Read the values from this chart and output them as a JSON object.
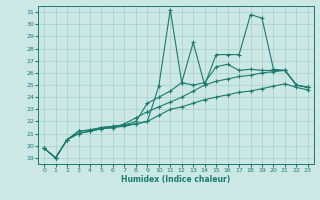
{
  "xlabel": "Humidex (Indice chaleur)",
  "background_color": "#cce8e5",
  "grid_color": "#a8ceca",
  "line_color": "#1a7a6e",
  "xlim": [
    -0.5,
    23.5
  ],
  "ylim": [
    18.5,
    31.5
  ],
  "xticks": [
    0,
    1,
    2,
    3,
    4,
    5,
    6,
    7,
    8,
    9,
    10,
    11,
    12,
    13,
    14,
    15,
    16,
    17,
    18,
    19,
    20,
    21,
    22,
    23
  ],
  "yticks": [
    19,
    20,
    21,
    22,
    23,
    24,
    25,
    26,
    27,
    28,
    29,
    30,
    31
  ],
  "series": [
    [
      19.8,
      19.0,
      20.5,
      21.2,
      21.3,
      21.5,
      21.6,
      21.7,
      21.8,
      22.0,
      24.9,
      31.2,
      25.2,
      28.5,
      25.0,
      27.5,
      27.5,
      27.5,
      30.8,
      30.5,
      26.3,
      26.2,
      25.0,
      24.8
    ],
    [
      19.8,
      19.0,
      20.5,
      21.2,
      21.3,
      21.5,
      21.6,
      21.7,
      22.0,
      23.5,
      24.0,
      24.5,
      25.2,
      25.0,
      25.2,
      26.5,
      26.7,
      26.2,
      26.3,
      26.2,
      26.2,
      26.2,
      25.0,
      24.8
    ],
    [
      19.8,
      19.0,
      20.5,
      21.0,
      21.2,
      21.4,
      21.5,
      21.8,
      22.3,
      22.8,
      23.2,
      23.6,
      24.0,
      24.5,
      25.0,
      25.3,
      25.5,
      25.7,
      25.8,
      26.0,
      26.1,
      26.2,
      25.0,
      24.8
    ],
    [
      19.8,
      19.0,
      20.5,
      21.0,
      21.2,
      21.4,
      21.5,
      21.6,
      21.8,
      22.0,
      22.5,
      23.0,
      23.2,
      23.5,
      23.8,
      24.0,
      24.2,
      24.4,
      24.5,
      24.7,
      24.9,
      25.1,
      24.8,
      24.6
    ]
  ]
}
